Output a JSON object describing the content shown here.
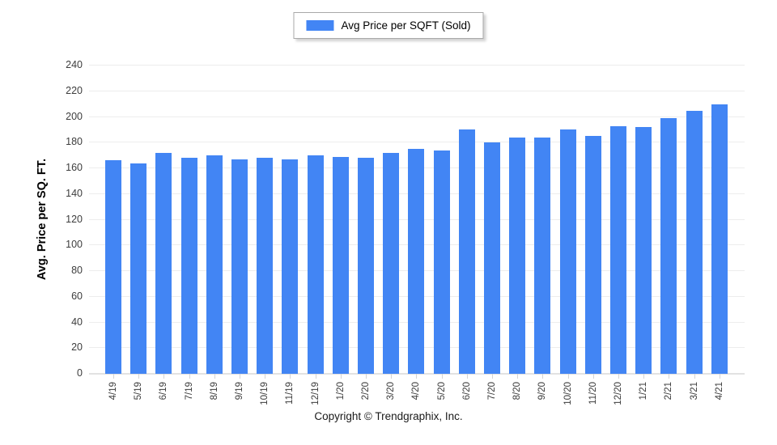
{
  "legend": {
    "label": "Avg Price per SQFT (Sold)",
    "swatch_color": "#4285f4"
  },
  "footer": {
    "copyright": "Copyright © Trendgraphix, Inc."
  },
  "chart_data": {
    "type": "bar",
    "title": "",
    "xlabel": "",
    "ylabel": "Avg. Price per SQ. FT.",
    "ylim": [
      0,
      240
    ],
    "yticks": [
      0,
      20,
      40,
      60,
      80,
      100,
      120,
      140,
      160,
      180,
      200,
      220,
      240
    ],
    "grid": true,
    "legend_position": "top-center",
    "categories": [
      "4/19",
      "5/19",
      "6/19",
      "7/19",
      "8/19",
      "9/19",
      "10/19",
      "11/19",
      "12/19",
      "1/20",
      "2/20",
      "3/20",
      "4/20",
      "5/20",
      "6/20",
      "7/20",
      "8/20",
      "9/20",
      "10/20",
      "11/20",
      "12/20",
      "1/21",
      "2/21",
      "3/21",
      "4/21"
    ],
    "series": [
      {
        "name": "Avg Price per SQFT (Sold)",
        "color": "#4285f4",
        "values": [
          166,
          164,
          172,
          168,
          170,
          167,
          168,
          167,
          170,
          169,
          168,
          172,
          175,
          174,
          190,
          180,
          184,
          184,
          190,
          185,
          193,
          192,
          199,
          205,
          210
        ]
      }
    ]
  }
}
